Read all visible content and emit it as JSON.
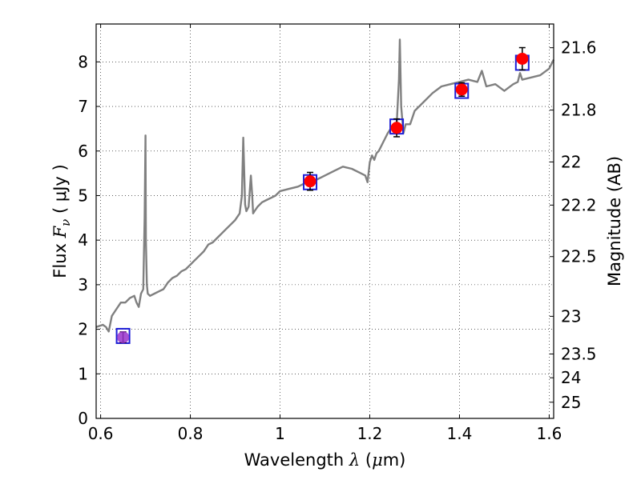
{
  "chart_data": {
    "type": "line",
    "xlabel": {
      "prefix": "Wavelength  ",
      "symbol": "λ",
      "unit_open": " (",
      "unit_mu": "μ",
      "unit_rest": "m)"
    },
    "ylabel": {
      "prefix": "Flux  ",
      "symbol": "F",
      "subscript": "ν",
      "unit": "  ( μJy )"
    },
    "y2label": "Magnitude (AB)",
    "xlim": [
      0.59,
      1.61
    ],
    "ylim": [
      0,
      8.85
    ],
    "grid": true,
    "x_ticks": [
      0.6,
      0.8,
      1.0,
      1.2,
      1.4,
      1.6
    ],
    "x_tick_labels": [
      "0.6",
      "0.8",
      "1",
      "1.2",
      "1.4",
      "1.6"
    ],
    "y_ticks": [
      0,
      1,
      2,
      3,
      4,
      5,
      6,
      7,
      8
    ],
    "y_tick_labels": [
      "0",
      "1",
      "2",
      "3",
      "4",
      "5",
      "6",
      "7",
      "8"
    ],
    "y2_ticks": [
      21.6,
      21.8,
      22,
      22.2,
      22.5,
      23,
      23.5,
      24,
      25
    ],
    "y2_tick_labels": [
      "21.6",
      "21.8",
      "22",
      "22.2",
      "22.5",
      "23",
      "23.5",
      "24",
      "25"
    ],
    "colors": {
      "spectrum": "#808080",
      "photometry": "#ff0000",
      "photometry_first": "#9933cc",
      "model_box": "#1f1fd6",
      "errorbar": "#000000",
      "grid": "#000000"
    },
    "series": [
      {
        "kind": "spectrum",
        "x": [
          0.59,
          0.605,
          0.612,
          0.618,
          0.625,
          0.635,
          0.645,
          0.655,
          0.665,
          0.675,
          0.68,
          0.685,
          0.69,
          0.695,
          0.698,
          0.7,
          0.701,
          0.703,
          0.705,
          0.71,
          0.72,
          0.73,
          0.74,
          0.75,
          0.76,
          0.77,
          0.78,
          0.79,
          0.8,
          0.81,
          0.82,
          0.83,
          0.84,
          0.85,
          0.86,
          0.87,
          0.88,
          0.89,
          0.9,
          0.91,
          0.915,
          0.918,
          0.92,
          0.922,
          0.925,
          0.93,
          0.935,
          0.938,
          0.94,
          0.943,
          0.95,
          0.96,
          0.97,
          0.98,
          0.99,
          1.0,
          1.02,
          1.04,
          1.06,
          1.08,
          1.1,
          1.12,
          1.14,
          1.16,
          1.18,
          1.19,
          1.195,
          1.2,
          1.205,
          1.21,
          1.215,
          1.22,
          1.23,
          1.24,
          1.25,
          1.255,
          1.26,
          1.265,
          1.267,
          1.27,
          1.275,
          1.28,
          1.29,
          1.3,
          1.32,
          1.34,
          1.36,
          1.38,
          1.4,
          1.42,
          1.44,
          1.45,
          1.46,
          1.48,
          1.5,
          1.52,
          1.53,
          1.535,
          1.54,
          1.56,
          1.58,
          1.6,
          1.61
        ],
        "y": [
          2.05,
          2.1,
          2.05,
          1.95,
          2.3,
          2.45,
          2.6,
          2.6,
          2.7,
          2.75,
          2.6,
          2.5,
          2.8,
          2.9,
          4.5,
          6.35,
          4.0,
          3.0,
          2.8,
          2.75,
          2.8,
          2.85,
          2.9,
          3.05,
          3.15,
          3.2,
          3.3,
          3.35,
          3.45,
          3.55,
          3.65,
          3.75,
          3.9,
          3.95,
          4.05,
          4.15,
          4.25,
          4.35,
          4.45,
          4.6,
          5.0,
          6.3,
          5.6,
          4.8,
          4.65,
          4.75,
          5.45,
          5.0,
          4.6,
          4.65,
          4.75,
          4.85,
          4.9,
          4.95,
          5.0,
          5.1,
          5.15,
          5.2,
          5.3,
          5.35,
          5.45,
          5.55,
          5.65,
          5.6,
          5.5,
          5.45,
          5.3,
          5.75,
          5.9,
          5.8,
          5.95,
          6.0,
          6.2,
          6.4,
          6.55,
          6.45,
          6.6,
          7.6,
          8.5,
          7.0,
          6.4,
          6.6,
          6.6,
          6.9,
          7.1,
          7.3,
          7.45,
          7.5,
          7.55,
          7.6,
          7.55,
          7.8,
          7.45,
          7.5,
          7.35,
          7.5,
          7.55,
          7.75,
          7.6,
          7.65,
          7.7,
          7.85,
          8.05
        ]
      },
      {
        "kind": "photometry",
        "x": [
          0.65,
          1.067,
          1.26,
          1.405,
          1.54
        ],
        "y": [
          1.82,
          5.32,
          6.52,
          7.38,
          8.07
        ],
        "yerr": [
          0.12,
          0.2,
          0.2,
          0.15,
          0.25
        ]
      },
      {
        "kind": "model",
        "x": [
          0.65,
          1.067,
          1.26,
          1.405,
          1.54
        ],
        "y": [
          1.85,
          5.3,
          6.55,
          7.35,
          7.98
        ]
      }
    ]
  }
}
